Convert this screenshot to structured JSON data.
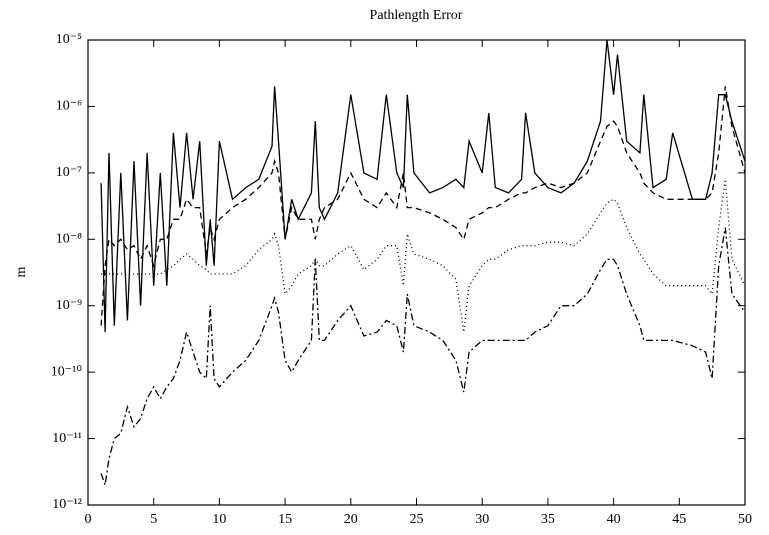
{
  "chart_data": {
    "type": "line",
    "title": "Pathlength Error",
    "ylabel": "m",
    "yscale": "log",
    "x": [
      1,
      1.3,
      1.6,
      2,
      2.5,
      3,
      3.5,
      4,
      4.5,
      5,
      5.5,
      6,
      6.5,
      7,
      7.5,
      8,
      8.5,
      9,
      9.3,
      9.6,
      10,
      11,
      12,
      13,
      14,
      14.2,
      14.5,
      15,
      15.5,
      16,
      17,
      17.3,
      17.6,
      18,
      19,
      20,
      21,
      22,
      22.7,
      23.5,
      24,
      24.3,
      24.8,
      26,
      27,
      28,
      28.6,
      29,
      30,
      30.5,
      31,
      32,
      33,
      33.3,
      34,
      35,
      36,
      37,
      38,
      39,
      39.5,
      40,
      40.3,
      41,
      42,
      42.3,
      43,
      44,
      44.5,
      46,
      47,
      47.5,
      48,
      48.5,
      49,
      50
    ],
    "series": [
      {
        "color": "#000000",
        "dash": "none",
        "values": [
          7e-08,
          4e-10,
          2e-07,
          5e-10,
          1e-07,
          6e-10,
          1.5e-07,
          1e-09,
          2e-07,
          2e-09,
          1e-07,
          2e-09,
          4e-07,
          3e-08,
          4e-07,
          4e-08,
          3e-07,
          4e-09,
          2e-08,
          4e-09,
          3e-07,
          4e-08,
          6e-08,
          8e-08,
          2.5e-07,
          2e-06,
          3e-07,
          1e-08,
          4e-08,
          2e-08,
          5e-08,
          6e-07,
          3e-08,
          2e-08,
          5e-08,
          1.5e-06,
          1e-07,
          8e-08,
          1.5e-06,
          1e-07,
          6e-08,
          1.5e-06,
          1e-07,
          5e-08,
          6e-08,
          8e-08,
          6e-08,
          3e-07,
          1e-07,
          8e-07,
          6e-08,
          5e-08,
          8e-08,
          8e-07,
          1e-07,
          6e-08,
          5e-08,
          7e-08,
          1.5e-07,
          6e-07,
          1e-05,
          1.5e-06,
          6e-06,
          3e-07,
          2e-07,
          1.5e-06,
          6e-08,
          8e-08,
          4e-07,
          4e-08,
          4e-08,
          1e-07,
          1.5e-06,
          1.5e-06,
          6e-07,
          1.5e-07
        ]
      },
      {
        "color": "#000000",
        "dash": "6 4",
        "values": [
          5e-10,
          4e-09,
          1e-08,
          8e-09,
          1e-08,
          7e-09,
          8e-09,
          5e-09,
          8e-09,
          4e-09,
          1e-08,
          1e-08,
          2e-08,
          2e-08,
          4e-08,
          3e-08,
          3e-08,
          6e-09,
          1.5e-08,
          1e-08,
          2e-08,
          3e-08,
          4e-08,
          6e-08,
          1e-07,
          1.5e-07,
          1e-07,
          1e-08,
          3e-08,
          2e-08,
          2e-08,
          1e-08,
          2e-08,
          3e-08,
          4e-08,
          1e-07,
          4e-08,
          3e-08,
          5e-08,
          3e-08,
          1e-07,
          3e-08,
          3e-08,
          2.5e-08,
          2e-08,
          1.5e-08,
          1e-08,
          2e-08,
          2.5e-08,
          3e-08,
          3e-08,
          4e-08,
          5e-08,
          5e-08,
          6e-08,
          7e-08,
          6e-08,
          7e-08,
          1e-07,
          3e-07,
          5e-07,
          6e-07,
          5e-07,
          2e-07,
          1e-07,
          7e-08,
          5e-08,
          4e-08,
          4e-08,
          4e-08,
          4e-08,
          5e-08,
          2e-07,
          2e-06,
          5e-07,
          1e-07
        ]
      },
      {
        "color": "#000000",
        "dash": "1 3",
        "values": [
          3e-09,
          3e-09,
          3e-09,
          3e-09,
          3e-09,
          3e-09,
          3e-09,
          3e-09,
          3e-09,
          3e-09,
          3e-09,
          3.5e-09,
          4e-09,
          5e-09,
          6e-09,
          5e-09,
          4e-09,
          3.5e-09,
          3e-09,
          3e-09,
          3e-09,
          3e-09,
          4e-09,
          7e-09,
          1e-08,
          1.2e-08,
          8e-09,
          1.5e-09,
          2e-09,
          3e-09,
          4e-09,
          5e-09,
          4e-09,
          4e-09,
          6e-09,
          8e-09,
          3.5e-09,
          5e-09,
          8e-09,
          8e-09,
          2e-09,
          1.2e-08,
          6e-09,
          5e-09,
          4e-09,
          2.5e-09,
          4e-10,
          2e-09,
          4e-09,
          5e-09,
          5e-09,
          7e-09,
          8e-09,
          8e-09,
          8e-09,
          9e-09,
          9e-09,
          8e-09,
          1.2e-08,
          2.5e-08,
          3.5e-08,
          4e-08,
          3.5e-08,
          1.5e-08,
          6e-09,
          5e-09,
          3e-09,
          2e-09,
          2e-09,
          2e-09,
          2e-09,
          1.5e-09,
          1.5e-08,
          8e-08,
          5e-09,
          2e-09
        ]
      },
      {
        "color": "#000000",
        "dash": "7 3 2 3",
        "values": [
          3e-12,
          2e-12,
          5e-12,
          1e-11,
          1.2e-11,
          3e-11,
          1.5e-11,
          2e-11,
          4e-11,
          6e-11,
          4e-11,
          6e-11,
          8e-11,
          1.5e-10,
          4e-10,
          2e-10,
          1e-10,
          8e-11,
          1e-09,
          8e-11,
          6e-11,
          1e-10,
          1.5e-10,
          3e-10,
          1e-09,
          1.3e-09,
          8e-10,
          1.5e-10,
          1e-10,
          1.5e-10,
          3e-10,
          5e-09,
          3e-10,
          3e-10,
          6e-10,
          1e-09,
          3.5e-10,
          4e-10,
          6e-10,
          5e-10,
          2e-10,
          1.5e-09,
          5e-10,
          4e-10,
          3e-10,
          1.5e-10,
          5e-11,
          2e-10,
          3e-10,
          3e-10,
          3e-10,
          3e-10,
          3e-10,
          3e-10,
          4e-10,
          5e-10,
          1e-09,
          1e-09,
          1.5e-09,
          3.5e-09,
          5e-09,
          5e-09,
          4e-09,
          1.5e-09,
          5e-10,
          3e-10,
          3e-10,
          3e-10,
          3e-10,
          2.5e-10,
          2e-10,
          8e-11,
          4e-09,
          1.5e-08,
          1.5e-09,
          8e-10
        ]
      }
    ],
    "xlim": [
      0,
      50
    ],
    "xticks": [
      0,
      5,
      10,
      15,
      20,
      25,
      30,
      35,
      40,
      45,
      50
    ],
    "ylim": [
      1e-12,
      1e-05
    ],
    "yticks": [
      {
        "value": 1e-12,
        "label": "10⁻¹²"
      },
      {
        "value": 1e-11,
        "label": "10⁻¹¹"
      },
      {
        "value": 1e-10,
        "label": "10⁻¹⁰"
      },
      {
        "value": 1e-09,
        "label": "10⁻⁹"
      },
      {
        "value": 1e-08,
        "label": "10⁻⁸"
      },
      {
        "value": 1e-07,
        "label": "10⁻⁷"
      },
      {
        "value": 1e-06,
        "label": "10⁻⁶"
      },
      {
        "value": 1e-05,
        "label": "10⁻⁵"
      }
    ],
    "grid": false
  }
}
